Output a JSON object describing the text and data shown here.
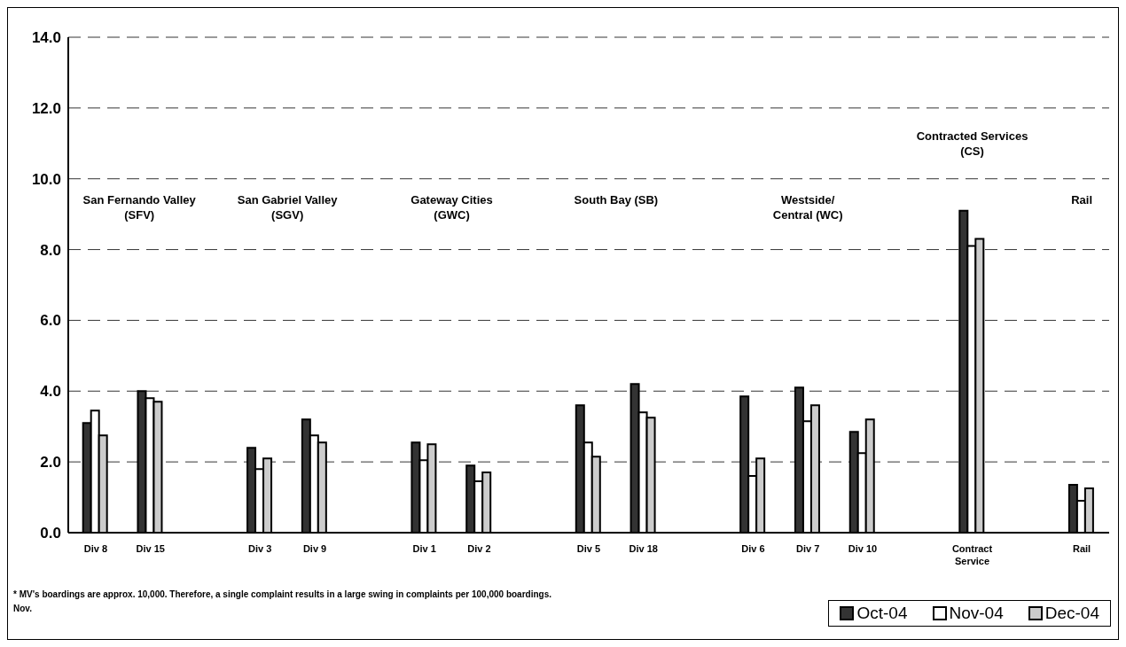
{
  "chart_data": {
    "type": "bar",
    "categories": [
      "Div 8",
      "Div 15",
      null,
      "Div 3",
      "Div 9",
      null,
      "Div 1",
      "Div 2",
      null,
      "Div 5",
      "Div 18",
      null,
      "Div 6",
      "Div 7",
      "Div 10",
      null,
      "Contract Service",
      null,
      "Rail"
    ],
    "series": [
      {
        "name": "Oct-04",
        "color": "#333333",
        "values": [
          3.1,
          4.0,
          null,
          2.4,
          3.2,
          null,
          2.55,
          1.9,
          null,
          3.6,
          4.2,
          null,
          3.85,
          4.1,
          2.85,
          null,
          9.1,
          null,
          1.35
        ]
      },
      {
        "name": "Nov-04",
        "color": "#ffffff",
        "values": [
          3.45,
          3.8,
          null,
          1.8,
          2.75,
          null,
          2.05,
          1.45,
          null,
          2.55,
          3.4,
          null,
          1.6,
          3.15,
          2.25,
          null,
          8.1,
          null,
          0.9
        ]
      },
      {
        "name": "Dec-04",
        "color": "#cccccc",
        "values": [
          2.75,
          3.7,
          null,
          2.1,
          2.55,
          null,
          2.5,
          1.7,
          null,
          2.15,
          3.25,
          null,
          2.1,
          3.6,
          3.2,
          null,
          8.3,
          null,
          1.25
        ]
      }
    ],
    "ylim": [
      0,
      14
    ],
    "yticks": [
      {
        "value": 0,
        "label": "0.0"
      },
      {
        "value": 2,
        "label": "2.0"
      },
      {
        "value": 4,
        "label": "4.0"
      },
      {
        "value": 6,
        "label": "6.0"
      },
      {
        "value": 8,
        "label": "8.0"
      },
      {
        "value": 10,
        "label": "10.0"
      },
      {
        "value": 12,
        "label": "12.0"
      },
      {
        "value": 14,
        "label": "14.0"
      }
    ],
    "grid": "y",
    "legend": "bottom right",
    "annotations": [
      "San Fernando Valley\n(SFV)",
      "San Gabriel Valley\n(SGV)",
      "Gateway Cities\n(GWC)",
      "South Bay (SB)",
      "Westside/\nCentral (WC)",
      "Contracted Services\n(CS)",
      "Rail",
      "* MV's boardings are approx. 10,000.  Therefore, a single complaint results in a large swing in complaints per 100,000 boardings.",
      "Nov."
    ]
  }
}
